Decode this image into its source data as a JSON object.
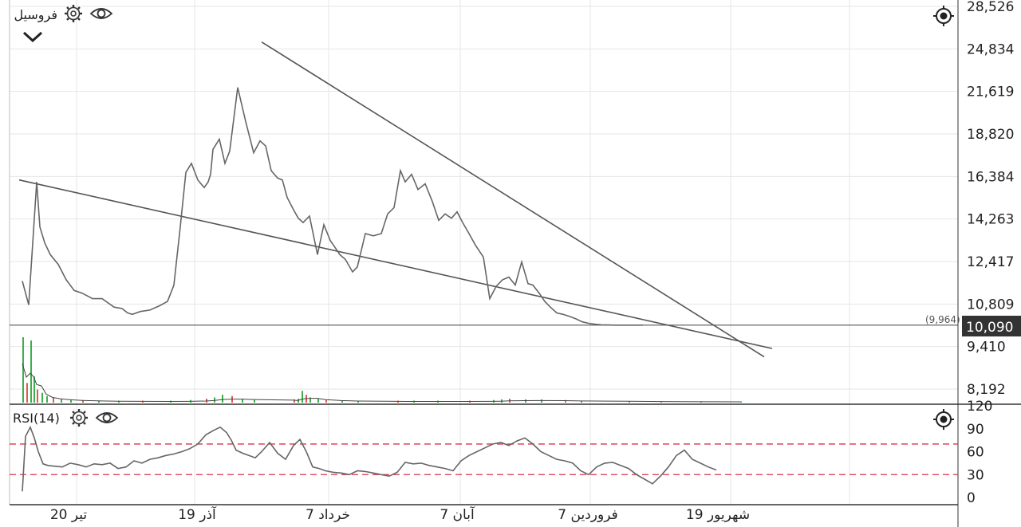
{
  "symbol": "فروسيل",
  "indicator_label": "RSI(14)",
  "icons": {
    "settings": "gear-icon",
    "visibility": "eye-icon",
    "collapse": "chevron-down-icon",
    "crosshair": "crosshair-icon"
  },
  "colors": {
    "price_line": "#666666",
    "trend_line": "#555555",
    "grid": "#e6e6e6",
    "volume_up": "#3cb04b",
    "volume_down": "#e05a4a",
    "rsi_band": "#d9344f",
    "price_box": "#333333"
  },
  "current_price_label": "10,090",
  "previous_price_label": "(9,964)",
  "chart_data": [
    {
      "type": "line",
      "panel": "price",
      "y_ticks": [
        "28,526",
        "24,834",
        "21,619",
        "18,820",
        "16,384",
        "14,263",
        "12,417",
        "10,809",
        "9,410",
        "8,192"
      ],
      "y_tick_values": [
        28526,
        24834,
        21619,
        18820,
        16384,
        14263,
        12417,
        10809,
        9410,
        8192
      ],
      "y_scale": "log",
      "x_labels": [
        "20 تير",
        "19 آذر",
        "7 خرداد",
        "7 آبان",
        "7 فروردين",
        "19 شهريور"
      ],
      "grid": true,
      "series": [
        {
          "x": [
            0,
            8,
            18,
            22,
            28,
            35,
            45,
            55,
            65,
            75,
            88,
            100,
            115,
            125,
            132,
            138,
            148,
            160,
            172,
            182,
            190,
            198,
            205,
            212,
            220,
            228,
            233,
            236,
            239,
            247,
            254,
            260,
            270,
            280,
            290,
            298,
            305,
            312,
            320,
            326,
            332,
            340,
            346,
            352,
            360,
            370,
            378,
            386,
            392,
            398,
            405,
            414,
            420,
            430,
            440,
            450,
            458,
            466,
            474,
            480,
            488,
            496,
            505,
            514,
            522,
            530,
            538,
            545,
            552,
            560,
            568,
            578,
            586,
            594,
            602,
            610,
            618,
            626,
            634,
            640,
            648,
            655,
            662,
            670,
            678,
            686,
            694,
            702,
            710,
            718,
            726,
            735,
            742,
            748,
            755,
            760,
            766,
            770,
            774,
            778
          ],
          "y": [
            11650,
            10780,
            16100,
            13900,
            13200,
            12700,
            12300,
            11700,
            11300,
            11200,
            11000,
            11000,
            10700,
            10650,
            10500,
            10450,
            10550,
            10600,
            10750,
            10900,
            11500,
            13900,
            16600,
            17100,
            16200,
            15800,
            16100,
            16500,
            17900,
            18500,
            17100,
            17800,
            21900,
            19600,
            17700,
            18400,
            18100,
            16700,
            16300,
            16200,
            15300,
            14700,
            14300,
            14100,
            14400,
            12700,
            14000,
            13300,
            13000,
            12700,
            12500,
            12000,
            12200,
            13600,
            13500,
            13600,
            14500,
            14800,
            16700,
            16100,
            16500,
            15700,
            16000,
            15100,
            14200,
            14500,
            14300,
            14600,
            14100,
            13600,
            13100,
            12600,
            11000,
            11450,
            11700,
            11800,
            11500,
            12400,
            11550,
            11500,
            11200,
            10900,
            10700,
            10500,
            10450,
            10380,
            10300,
            10200,
            10150,
            10120,
            10100,
            10095,
            10090,
            10090,
            10090,
            10090,
            10090,
            10090,
            10090,
            10090
          ]
        }
      ],
      "trend_lines": [
        {
          "from": {
            "x": -4,
            "y": 16200
          },
          "to": {
            "x": 940,
            "y": 9350
          }
        },
        {
          "from": {
            "x": 300,
            "y": 25400
          },
          "to": {
            "x": 930,
            "y": 9100
          }
        }
      ],
      "horizontal_line": {
        "y": 10090
      }
    },
    {
      "type": "bar",
      "panel": "volume",
      "x": [
        0,
        5,
        10,
        14,
        18,
        24,
        30,
        38,
        48,
        60,
        75,
        95,
        120,
        150,
        185,
        210,
        230,
        240,
        250,
        262,
        275,
        290,
        340,
        345,
        350,
        355,
        360,
        370,
        380,
        400,
        420,
        470,
        490,
        520,
        560,
        590,
        600,
        610,
        630,
        650,
        680,
        700,
        760,
        800,
        850,
        900
      ],
      "values": [
        100,
        30,
        95,
        40,
        20,
        15,
        10,
        8,
        6,
        5,
        4,
        3,
        3,
        3,
        3,
        4,
        6,
        8,
        12,
        10,
        6,
        4,
        5,
        6,
        18,
        12,
        8,
        6,
        4,
        3,
        3,
        3,
        3,
        3,
        3,
        4,
        5,
        6,
        5,
        5,
        4,
        3,
        2,
        2,
        2,
        2
      ],
      "moving_average": true
    },
    {
      "type": "line",
      "panel": "rsi",
      "title": "RSI(14)",
      "y_ticks": [
        "120",
        "90",
        "60",
        "30",
        "0"
      ],
      "y_tick_values": [
        120,
        90,
        60,
        30,
        0
      ],
      "bands": [
        70,
        30
      ],
      "series": [
        {
          "x": [
            0,
            4,
            10,
            15,
            20,
            26,
            32,
            40,
            50,
            60,
            70,
            80,
            90,
            100,
            110,
            120,
            130,
            140,
            150,
            160,
            170,
            180,
            190,
            200,
            210,
            220,
            230,
            240,
            248,
            256,
            262,
            268,
            276,
            284,
            292,
            300,
            310,
            320,
            330,
            340,
            348,
            356,
            364,
            372,
            380,
            390,
            400,
            410,
            420,
            430,
            440,
            450,
            460,
            470,
            480,
            490,
            500,
            510,
            520,
            530,
            540,
            550,
            560,
            570,
            580,
            590,
            600,
            610,
            620,
            630,
            640,
            650,
            660,
            670,
            680,
            690,
            700,
            710,
            720,
            730,
            740,
            750,
            760,
            770,
            780,
            790,
            800,
            810,
            820,
            830,
            840,
            850,
            860,
            870
          ],
          "y": [
            8,
            80,
            92,
            78,
            60,
            44,
            42,
            41,
            40,
            45,
            43,
            40,
            44,
            43,
            45,
            38,
            40,
            48,
            45,
            50,
            52,
            55,
            57,
            60,
            64,
            70,
            82,
            88,
            92,
            85,
            75,
            62,
            58,
            55,
            52,
            60,
            72,
            58,
            50,
            68,
            76,
            60,
            40,
            38,
            35,
            33,
            32,
            30,
            35,
            34,
            32,
            30,
            28,
            33,
            46,
            44,
            45,
            42,
            40,
            38,
            35,
            48,
            55,
            60,
            65,
            70,
            72,
            68,
            74,
            78,
            70,
            60,
            55,
            50,
            48,
            45,
            35,
            30,
            40,
            45,
            46,
            42,
            38,
            30,
            24,
            18,
            28,
            40,
            55,
            62,
            50,
            45,
            40,
            36
          ]
        }
      ]
    }
  ]
}
